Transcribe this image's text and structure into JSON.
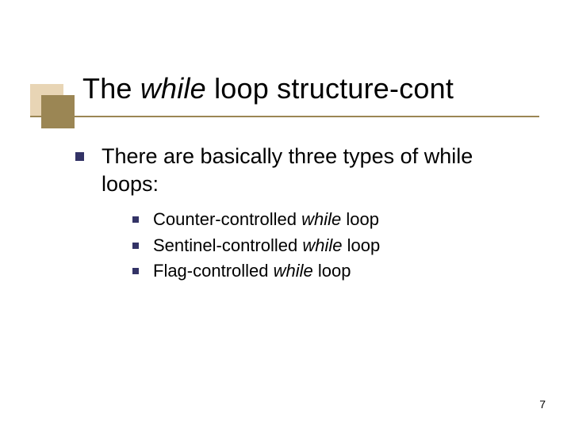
{
  "colors": {
    "bullet": "#333366",
    "decoration_back": "#e8d5b5",
    "decoration_front": "#9b8654",
    "underline": "#9b8654",
    "text": "#000000",
    "background": "#ffffff"
  },
  "title": {
    "prefix": "The ",
    "italic": "while",
    "suffix": " loop structure-cont",
    "fontsize": 36
  },
  "body": {
    "intro": "There are basically three types of while loops:",
    "intro_fontsize": 27,
    "items": [
      {
        "prefix": "Counter-controlled ",
        "italic": "while",
        "suffix": " loop"
      },
      {
        "prefix": "Sentinel-controlled ",
        "italic": "while",
        "suffix": " loop"
      },
      {
        "prefix": "Flag-controlled ",
        "italic": "while",
        "suffix": " loop"
      }
    ],
    "item_fontsize": 22
  },
  "page_number": "7"
}
